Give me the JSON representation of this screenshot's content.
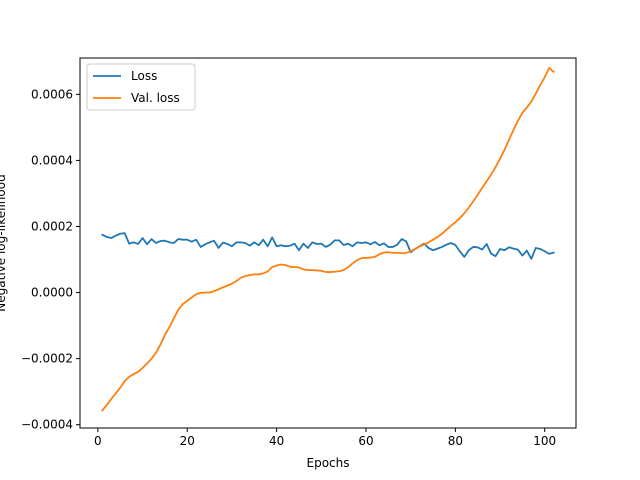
{
  "chart_data": {
    "type": "line",
    "title": "",
    "xlabel": "Epochs",
    "ylabel": "Negative log-likelihood",
    "xlim": [
      -4,
      107
    ],
    "ylim": [
      -0.00041,
      0.00071
    ],
    "x_ticks": [
      0,
      20,
      40,
      60,
      80,
      100
    ],
    "x_tick_labels": [
      "0",
      "20",
      "40",
      "60",
      "80",
      "100"
    ],
    "y_ticks": [
      -0.0004,
      -0.0002,
      0.0,
      0.0002,
      0.0004,
      0.0006
    ],
    "y_tick_labels": [
      "−0.0004",
      "−0.0002",
      "0.0000",
      "0.0002",
      "0.0004",
      "0.0006"
    ],
    "grid": false,
    "legend_position": "top-left",
    "series": [
      {
        "name": "Loss",
        "color": "#1f77b4",
        "points": [
          [
            1,
            0.000175
          ],
          [
            2,
            0.000168
          ],
          [
            3,
            0.000165
          ],
          [
            4,
            0.000172
          ],
          [
            5,
            0.000178
          ],
          [
            6,
            0.00018
          ],
          [
            7,
            0.000148
          ],
          [
            8,
            0.000152
          ],
          [
            9,
            0.000147
          ],
          [
            10,
            0.000165
          ],
          [
            11,
            0.000146
          ],
          [
            12,
            0.000162
          ],
          [
            13,
            0.00015
          ],
          [
            14,
            0.000156
          ],
          [
            15,
            0.000157
          ],
          [
            16,
            0.000152
          ],
          [
            17,
            0.00015
          ],
          [
            18,
            0.000162
          ],
          [
            19,
            0.00016
          ],
          [
            20,
            0.00016
          ],
          [
            21,
            0.000154
          ],
          [
            22,
            0.00016
          ],
          [
            23,
            0.000138
          ],
          [
            24,
            0.000146
          ],
          [
            25,
            0.000152
          ],
          [
            26,
            0.000157
          ],
          [
            27,
            0.000135
          ],
          [
            28,
            0.000151
          ],
          [
            29,
            0.000147
          ],
          [
            30,
            0.00014
          ],
          [
            31,
            0.000152
          ],
          [
            32,
            0.000152
          ],
          [
            33,
            0.00015
          ],
          [
            34,
            0.000142
          ],
          [
            35,
            0.000152
          ],
          [
            36,
            0.000143
          ],
          [
            37,
            0.00016
          ],
          [
            38,
            0.00014
          ],
          [
            39,
            0.000167
          ],
          [
            40,
            0.00014
          ],
          [
            41,
            0.000143
          ],
          [
            42,
            0.00014
          ],
          [
            43,
            0.000142
          ],
          [
            44,
            0.000148
          ],
          [
            45,
            0.000128
          ],
          [
            46,
            0.000148
          ],
          [
            47,
            0.000135
          ],
          [
            48,
            0.000152
          ],
          [
            49,
            0.000147
          ],
          [
            50,
            0.000148
          ],
          [
            51,
            0.000138
          ],
          [
            52,
            0.000145
          ],
          [
            53,
            0.000158
          ],
          [
            54,
            0.000158
          ],
          [
            55,
            0.000144
          ],
          [
            56,
            0.000148
          ],
          [
            57,
            0.00014
          ],
          [
            58,
            0.000152
          ],
          [
            59,
            0.00015
          ],
          [
            60,
            0.000152
          ],
          [
            61,
            0.000146
          ],
          [
            62,
            0.000153
          ],
          [
            63,
            0.000143
          ],
          [
            64,
            0.000149
          ],
          [
            65,
            0.000138
          ],
          [
            66,
            0.000138
          ],
          [
            67,
            0.000145
          ],
          [
            68,
            0.000162
          ],
          [
            69,
            0.000155
          ],
          [
            70,
            0.000122
          ],
          [
            71,
            0.000132
          ],
          [
            72,
            0.00014
          ],
          [
            73,
            0.000148
          ],
          [
            74,
            0.000135
          ],
          [
            75,
            0.000128
          ],
          [
            76,
            0.000133
          ],
          [
            77,
            0.000138
          ],
          [
            78,
            0.000145
          ],
          [
            79,
            0.00015
          ],
          [
            80,
            0.000144
          ],
          [
            81,
            0.000125
          ],
          [
            82,
            0.000108
          ],
          [
            83,
            0.000128
          ],
          [
            84,
            0.000138
          ],
          [
            85,
            0.000137
          ],
          [
            86,
            0.00013
          ],
          [
            87,
            0.000147
          ],
          [
            88,
            0.000118
          ],
          [
            89,
            0.00011
          ],
          [
            90,
            0.000132
          ],
          [
            91,
            0.000128
          ],
          [
            92,
            0.000137
          ],
          [
            93,
            0.000133
          ],
          [
            94,
            0.00013
          ],
          [
            95,
            0.000112
          ],
          [
            96,
            0.000127
          ],
          [
            97,
            0.000102
          ],
          [
            98,
            0.000135
          ],
          [
            99,
            0.000132
          ],
          [
            100,
            0.000125
          ],
          [
            101,
            0.000117
          ],
          [
            102,
            0.000121
          ]
        ]
      },
      {
        "name": "Val. loss",
        "color": "#ff7f0e",
        "points": [
          [
            1,
            -0.000357
          ],
          [
            2,
            -0.00034
          ],
          [
            3,
            -0.000322
          ],
          [
            4,
            -0.000305
          ],
          [
            5,
            -0.000288
          ],
          [
            6,
            -0.000268
          ],
          [
            7,
            -0.000255
          ],
          [
            8,
            -0.000247
          ],
          [
            9,
            -0.00024
          ],
          [
            10,
            -0.000228
          ],
          [
            11,
            -0.000215
          ],
          [
            12,
            -0.0002
          ],
          [
            13,
            -0.000182
          ],
          [
            14,
            -0.000158
          ],
          [
            15,
            -0.000128
          ],
          [
            16,
            -0.000105
          ],
          [
            17,
            -7.8e-05
          ],
          [
            18,
            -5.2e-05
          ],
          [
            19,
            -3.5e-05
          ],
          [
            20,
            -2.5e-05
          ],
          [
            21,
            -1.5e-05
          ],
          [
            22,
            -5e-06
          ],
          [
            23,
            -1e-06
          ],
          [
            24,
            0.0
          ],
          [
            25,
            0.0
          ],
          [
            26,
            4e-06
          ],
          [
            27,
            1e-05
          ],
          [
            28,
            1.6e-05
          ],
          [
            29,
            2.1e-05
          ],
          [
            30,
            2.7e-05
          ],
          [
            31,
            3.5e-05
          ],
          [
            32,
            4.5e-05
          ],
          [
            33,
            5e-05
          ],
          [
            34,
            5.3e-05
          ],
          [
            35,
            5.5e-05
          ],
          [
            36,
            5.5e-05
          ],
          [
            37,
            5.8e-05
          ],
          [
            38,
            6.4e-05
          ],
          [
            39,
            7.7e-05
          ],
          [
            40,
            8.2e-05
          ],
          [
            41,
            8.5e-05
          ],
          [
            42,
            8.3e-05
          ],
          [
            43,
            7.8e-05
          ],
          [
            44,
            7.7e-05
          ],
          [
            45,
            7.6e-05
          ],
          [
            46,
            7e-05
          ],
          [
            47,
            6.8e-05
          ],
          [
            48,
            6.8e-05
          ],
          [
            49,
            6.7e-05
          ],
          [
            50,
            6.6e-05
          ],
          [
            51,
            6.2e-05
          ],
          [
            52,
            6.2e-05
          ],
          [
            53,
            6.3e-05
          ],
          [
            54,
            6.5e-05
          ],
          [
            55,
            6.8e-05
          ],
          [
            56,
            7.7e-05
          ],
          [
            57,
            8.8e-05
          ],
          [
            58,
            9.8e-05
          ],
          [
            59,
            0.000104
          ],
          [
            60,
            0.000105
          ],
          [
            61,
            0.000106
          ],
          [
            62,
            0.000108
          ],
          [
            63,
            0.000116
          ],
          [
            64,
            0.000121
          ],
          [
            65,
            0.000122
          ],
          [
            66,
            0.00012
          ],
          [
            67,
            0.00012
          ],
          [
            68,
            0.000119
          ],
          [
            69,
            0.00012
          ],
          [
            70,
            0.000125
          ],
          [
            71,
            0.000132
          ],
          [
            72,
            0.00014
          ],
          [
            73,
            0.000145
          ],
          [
            74,
            0.000152
          ],
          [
            75,
            0.00016
          ],
          [
            76,
            0.000168
          ],
          [
            77,
            0.000178
          ],
          [
            78,
            0.00019
          ],
          [
            79,
            0.000202
          ],
          [
            80,
            0.000213
          ],
          [
            81,
            0.000225
          ],
          [
            82,
            0.00024
          ],
          [
            83,
            0.000257
          ],
          [
            84,
            0.000276
          ],
          [
            85,
            0.000296
          ],
          [
            86,
            0.000317
          ],
          [
            87,
            0.000337
          ],
          [
            88,
            0.000357
          ],
          [
            89,
            0.00038
          ],
          [
            90,
            0.000405
          ],
          [
            91,
            0.000432
          ],
          [
            92,
            0.000462
          ],
          [
            93,
            0.000492
          ],
          [
            94,
            0.00052
          ],
          [
            95,
            0.000544
          ],
          [
            96,
            0.00056
          ],
          [
            97,
            0.000578
          ],
          [
            98,
            0.000602
          ],
          [
            99,
            0.000628
          ],
          [
            100,
            0.000652
          ],
          [
            101,
            0.00068
          ],
          [
            102,
            0.000668
          ]
        ]
      }
    ]
  }
}
